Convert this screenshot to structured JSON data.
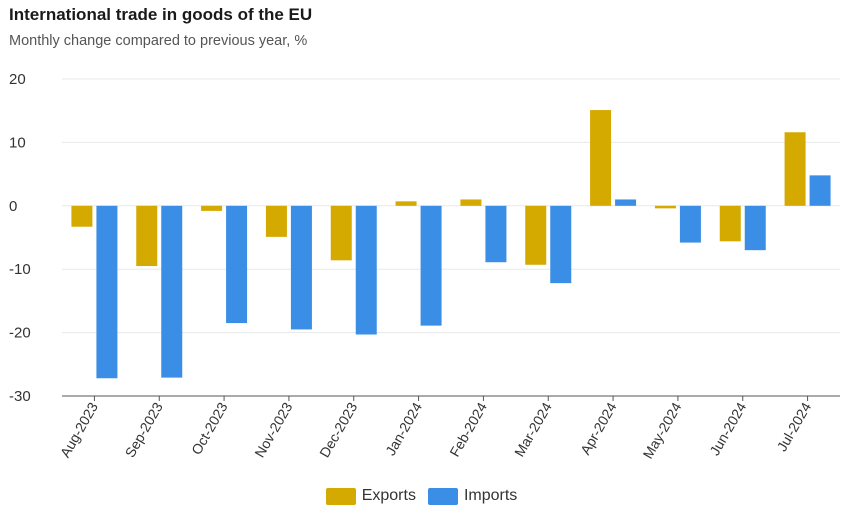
{
  "title": "International trade in goods of the EU",
  "subtitle": "Monthly change compared to previous year, %",
  "colors": {
    "exports": "#d4a900",
    "imports": "#3a8ee6",
    "grid": "#e8e8e8"
  },
  "chart_data": {
    "type": "bar",
    "title": "International trade in goods of the EU",
    "subtitle": "Monthly change compared to previous year, %",
    "xlabel": "",
    "ylabel": "",
    "ylim": [
      -30,
      20
    ],
    "yticks": [
      20,
      10,
      0,
      -10,
      -20,
      -30
    ],
    "grid": true,
    "legend_position": "bottom",
    "categories": [
      "Aug-2023",
      "Sep-2023",
      "Oct-2023",
      "Nov-2023",
      "Dec-2023",
      "Jan-2024",
      "Feb-2024",
      "Mar-2024",
      "Apr-2024",
      "May-2024",
      "Jun-2024",
      "Jul-2024"
    ],
    "series": [
      {
        "name": "Exports",
        "values": [
          -3.3,
          -9.5,
          -0.8,
          -4.9,
          -8.6,
          0.7,
          1.0,
          -9.3,
          15.1,
          -0.4,
          -5.6,
          11.6
        ]
      },
      {
        "name": "Imports",
        "values": [
          -27.2,
          -27.1,
          -18.5,
          -19.5,
          -20.3,
          -18.9,
          -8.9,
          -12.2,
          1.0,
          -5.8,
          -7.0,
          4.8
        ]
      }
    ]
  }
}
